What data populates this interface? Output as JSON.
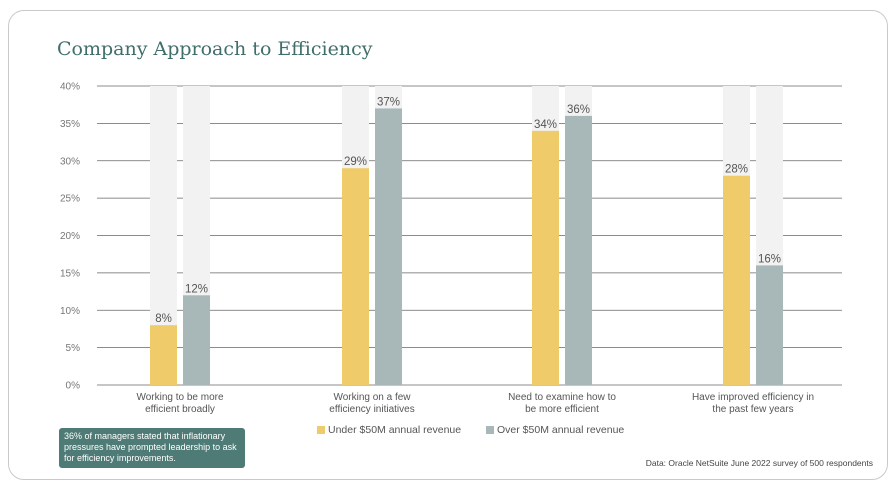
{
  "chart_data": {
    "type": "bar",
    "title": "Company Approach to Efficiency",
    "categories": [
      [
        "Working to be more",
        "efficient broadly"
      ],
      [
        "Working on a few",
        "efficiency initiatives"
      ],
      [
        "Need to examine how to",
        "be more efficient"
      ],
      [
        "Have improved efficiency in",
        "the past few years"
      ]
    ],
    "series": [
      {
        "name": "Under $50M annual revenue",
        "color": "#efcb6a",
        "values": [
          8,
          29,
          34,
          28
        ],
        "labels": [
          "8%",
          "29%",
          "34%",
          "28%"
        ]
      },
      {
        "name": "Over $50M annual revenue",
        "color": "#a8b8b8",
        "values": [
          12,
          37,
          36,
          16
        ],
        "labels": [
          "12%",
          "37%",
          "36%",
          "16%"
        ]
      }
    ],
    "ylim": [
      0,
      40
    ],
    "yticks": [
      0,
      5,
      10,
      15,
      20,
      25,
      30,
      35,
      40
    ],
    "ytick_labels": [
      "0%",
      "5%",
      "10%",
      "15%",
      "20%",
      "25%",
      "30%",
      "35%",
      "40%"
    ],
    "xlabel": "",
    "ylabel": "",
    "grid": true,
    "legend_position": "bottom-center"
  },
  "note": "36% of managers stated that inflationary pressures have prompted leadership to ask for efficiency improvements.",
  "source": "Data: Oracle NetSuite June 2022 survey of 500 respondents",
  "colors": {
    "title": "#3f6e6b",
    "note_bg": "#4f7b76",
    "bar_background": "#f2f2f2",
    "grid": "#666666"
  }
}
